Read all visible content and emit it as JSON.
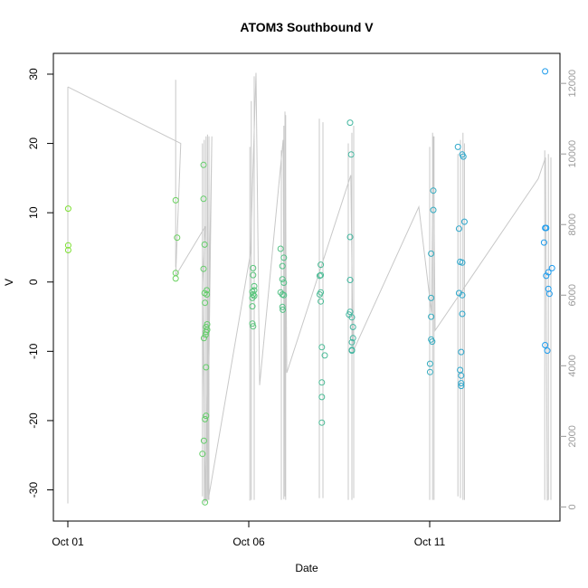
{
  "chart_data": {
    "type": "scatter",
    "title": "ATOM3 Southbound V",
    "xlabel": "Date",
    "ylabel": "V",
    "x_axis": {
      "ticks": [
        {
          "day": 1,
          "label": "Oct 01"
        },
        {
          "day": 6,
          "label": "Oct 06"
        },
        {
          "day": 11,
          "label": "Oct 11"
        }
      ],
      "range_days": [
        0.6,
        14.6
      ]
    },
    "y_axis": {
      "ticks": [
        -30,
        -20,
        -10,
        0,
        10,
        20,
        30
      ],
      "range": [
        -34.5,
        33
      ]
    },
    "y2_axis": {
      "ticks": [
        0,
        2000,
        4000,
        6000,
        8000,
        10000,
        12000
      ],
      "range": [
        -400,
        12850
      ],
      "color": "#9a9a9a"
    },
    "series": [
      {
        "marker": "open-circle",
        "color_gradient": [
          "#7ee033",
          "#1b9aef"
        ],
        "points": [
          {
            "day": 1.01,
            "v": 10.6
          },
          {
            "day": 1.01,
            "v": 5.3
          },
          {
            "day": 1.01,
            "v": 4.6
          },
          {
            "day": 3.98,
            "v": 11.8
          },
          {
            "day": 4.02,
            "v": 6.4
          },
          {
            "day": 3.98,
            "v": 1.3
          },
          {
            "day": 3.98,
            "v": 0.5
          },
          {
            "day": 4.75,
            "v": 16.9
          },
          {
            "day": 4.75,
            "v": 12.0
          },
          {
            "day": 4.78,
            "v": 5.4
          },
          {
            "day": 4.75,
            "v": 1.9
          },
          {
            "day": 4.78,
            "v": -1.6
          },
          {
            "day": 4.84,
            "v": -1.2
          },
          {
            "day": 4.84,
            "v": -1.8
          },
          {
            "day": 4.79,
            "v": -3.0
          },
          {
            "day": 4.85,
            "v": -6.1
          },
          {
            "day": 4.82,
            "v": -6.5
          },
          {
            "day": 4.85,
            "v": -6.9
          },
          {
            "day": 4.82,
            "v": -7.2
          },
          {
            "day": 4.81,
            "v": -7.6
          },
          {
            "day": 4.76,
            "v": -8.1
          },
          {
            "day": 4.82,
            "v": -12.3
          },
          {
            "day": 4.82,
            "v": -19.3
          },
          {
            "day": 4.79,
            "v": -19.8
          },
          {
            "day": 4.76,
            "v": -22.9
          },
          {
            "day": 4.72,
            "v": -24.8
          },
          {
            "day": 4.79,
            "v": -31.8
          },
          {
            "day": 6.12,
            "v": 2.0
          },
          {
            "day": 6.12,
            "v": 1.0
          },
          {
            "day": 6.15,
            "v": -0.6
          },
          {
            "day": 6.1,
            "v": -1.4
          },
          {
            "day": 6.15,
            "v": -1.2
          },
          {
            "day": 6.12,
            "v": -1.8
          },
          {
            "day": 6.1,
            "v": -2.3
          },
          {
            "day": 6.15,
            "v": -2.0
          },
          {
            "day": 6.1,
            "v": -3.5
          },
          {
            "day": 6.1,
            "v": -6.0
          },
          {
            "day": 6.12,
            "v": -6.4
          },
          {
            "day": 6.88,
            "v": 4.8
          },
          {
            "day": 6.97,
            "v": 3.5
          },
          {
            "day": 6.93,
            "v": 2.3
          },
          {
            "day": 6.93,
            "v": 0.4
          },
          {
            "day": 6.97,
            "v": -0.1
          },
          {
            "day": 6.88,
            "v": -1.5
          },
          {
            "day": 6.93,
            "v": -1.8
          },
          {
            "day": 6.97,
            "v": -1.9
          },
          {
            "day": 6.93,
            "v": -3.6
          },
          {
            "day": 6.94,
            "v": -4.0
          },
          {
            "day": 7.99,
            "v": 2.5
          },
          {
            "day": 7.99,
            "v": 1.0
          },
          {
            "day": 7.96,
            "v": 0.9
          },
          {
            "day": 7.99,
            "v": -1.5
          },
          {
            "day": 7.96,
            "v": -1.8
          },
          {
            "day": 7.99,
            "v": -2.8
          },
          {
            "day": 8.02,
            "v": -9.4
          },
          {
            "day": 8.1,
            "v": -10.6
          },
          {
            "day": 8.02,
            "v": -14.5
          },
          {
            "day": 8.02,
            "v": -16.6
          },
          {
            "day": 8.02,
            "v": -20.3
          },
          {
            "day": 8.8,
            "v": 23.0
          },
          {
            "day": 8.83,
            "v": 18.4
          },
          {
            "day": 8.8,
            "v": 6.5
          },
          {
            "day": 8.8,
            "v": 0.3
          },
          {
            "day": 8.8,
            "v": -4.3
          },
          {
            "day": 8.77,
            "v": -4.7
          },
          {
            "day": 8.85,
            "v": -5.1
          },
          {
            "day": 8.88,
            "v": -6.5
          },
          {
            "day": 8.88,
            "v": -8.1
          },
          {
            "day": 8.85,
            "v": -8.7
          },
          {
            "day": 8.85,
            "v": -9.8
          },
          {
            "day": 8.85,
            "v": -9.9
          },
          {
            "day": 11.04,
            "v": 4.1
          },
          {
            "day": 11.04,
            "v": -2.3
          },
          {
            "day": 11.04,
            "v": -5.0
          },
          {
            "day": 11.04,
            "v": -8.3
          },
          {
            "day": 11.07,
            "v": -8.6
          },
          {
            "day": 11.01,
            "v": -11.8
          },
          {
            "day": 11.01,
            "v": -13.0
          },
          {
            "day": 11.1,
            "v": 13.2
          },
          {
            "day": 11.1,
            "v": 10.4
          },
          {
            "day": 11.78,
            "v": 19.5
          },
          {
            "day": 11.9,
            "v": 18.4
          },
          {
            "day": 11.93,
            "v": 18.1
          },
          {
            "day": 11.96,
            "v": 8.7
          },
          {
            "day": 11.81,
            "v": 7.7
          },
          {
            "day": 11.84,
            "v": 2.9
          },
          {
            "day": 11.9,
            "v": 2.8
          },
          {
            "day": 11.81,
            "v": -1.6
          },
          {
            "day": 11.9,
            "v": -1.9
          },
          {
            "day": 11.9,
            "v": -4.6
          },
          {
            "day": 11.87,
            "v": -10.1
          },
          {
            "day": 11.84,
            "v": -12.7
          },
          {
            "day": 11.87,
            "v": -13.5
          },
          {
            "day": 11.87,
            "v": -14.6
          },
          {
            "day": 11.87,
            "v": -15.0
          },
          {
            "day": 14.19,
            "v": 30.4
          },
          {
            "day": 14.19,
            "v": 7.8
          },
          {
            "day": 14.22,
            "v": 7.8
          },
          {
            "day": 14.16,
            "v": 5.7
          },
          {
            "day": 14.38,
            "v": 2.0
          },
          {
            "day": 14.28,
            "v": 1.4
          },
          {
            "day": 14.22,
            "v": 0.9
          },
          {
            "day": 14.28,
            "v": -1.0
          },
          {
            "day": 14.31,
            "v": -1.7
          },
          {
            "day": 14.19,
            "v": -9.1
          },
          {
            "day": 14.25,
            "v": -9.9
          }
        ]
      },
      {
        "marker": "line",
        "axis": "right",
        "color": "#c8c8c8",
        "points": [
          {
            "day": 1.0,
            "v": 11900
          },
          {
            "day": 4.12,
            "v": 10300
          },
          {
            "day": 3.98,
            "v": 6550
          },
          {
            "day": 4.8,
            "v": 7950
          },
          {
            "day": 4.72,
            "v": 6250
          },
          {
            "day": 4.8,
            "v": 150
          },
          {
            "day": 4.98,
            "v": 10500
          },
          {
            "day": 4.85,
            "v": 180
          },
          {
            "day": 4.86,
            "v": 10550
          },
          {
            "day": 4.88,
            "v": 200
          },
          {
            "day": 6.05,
            "v": 7200
          },
          {
            "day": 6.1,
            "v": 9000
          },
          {
            "day": 6.2,
            "v": 12300
          },
          {
            "day": 6.3,
            "v": 3450
          },
          {
            "day": 6.95,
            "v": 10400
          },
          {
            "day": 7.0,
            "v": 300
          },
          {
            "day": 7.0,
            "v": 11200
          },
          {
            "day": 7.05,
            "v": 3800
          },
          {
            "day": 8.82,
            "v": 9400
          },
          {
            "day": 8.88,
            "v": 4400
          },
          {
            "day": 10.7,
            "v": 8500
          },
          {
            "day": 11.05,
            "v": 5500
          },
          {
            "day": 11.1,
            "v": 10500
          },
          {
            "day": 11.15,
            "v": 5000
          },
          {
            "day": 14.0,
            "v": 9300
          },
          {
            "day": 14.2,
            "v": 9900
          },
          {
            "day": 14.25,
            "v": 180
          }
        ]
      }
    ],
    "spikes": [
      {
        "day": 1.0,
        "from": 11900,
        "to": 100
      },
      {
        "day": 3.98,
        "from": 12100,
        "to": 6800
      },
      {
        "day": 4.72,
        "from": 10300,
        "to": 300
      },
      {
        "day": 4.77,
        "from": 10400,
        "to": 100
      },
      {
        "day": 4.82,
        "from": 10500,
        "to": 150
      },
      {
        "day": 4.9,
        "from": 10500,
        "to": 200
      },
      {
        "day": 6.03,
        "from": 10200,
        "to": 180
      },
      {
        "day": 6.07,
        "from": 11500,
        "to": 200
      },
      {
        "day": 6.15,
        "from": 12200,
        "to": 200
      },
      {
        "day": 6.9,
        "from": 10100,
        "to": 200
      },
      {
        "day": 6.97,
        "from": 10800,
        "to": 220
      },
      {
        "day": 7.02,
        "from": 11100,
        "to": 200
      },
      {
        "day": 7.95,
        "from": 11000,
        "to": 250
      },
      {
        "day": 8.05,
        "from": 10900,
        "to": 250
      },
      {
        "day": 8.75,
        "from": 10300,
        "to": 200
      },
      {
        "day": 8.85,
        "from": 10600,
        "to": 200
      },
      {
        "day": 8.9,
        "from": 10800,
        "to": 250
      },
      {
        "day": 11.0,
        "from": 10200,
        "to": 200
      },
      {
        "day": 11.08,
        "from": 10600,
        "to": 200
      },
      {
        "day": 11.12,
        "from": 10500,
        "to": 200
      },
      {
        "day": 11.78,
        "from": 10000,
        "to": 300
      },
      {
        "day": 11.85,
        "from": 10400,
        "to": 250
      },
      {
        "day": 11.92,
        "from": 10600,
        "to": 200
      },
      {
        "day": 11.96,
        "from": 10300,
        "to": 200
      },
      {
        "day": 14.18,
        "from": 10100,
        "to": 200
      },
      {
        "day": 14.28,
        "from": 10000,
        "to": 200
      },
      {
        "day": 14.35,
        "from": 9900,
        "to": 200
      }
    ],
    "legend": "none",
    "grid": false
  }
}
